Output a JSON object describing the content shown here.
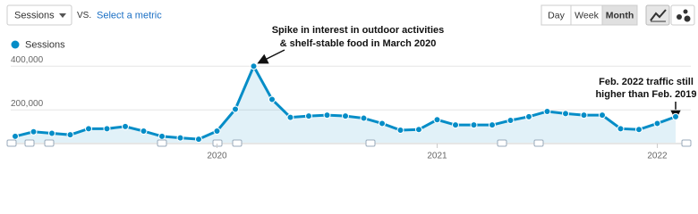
{
  "toolbar": {
    "metric": "Sessions",
    "vs": "VS.",
    "select": "Select a metric",
    "periods": [
      "Day",
      "Week",
      "Month"
    ]
  },
  "chart_data": {
    "type": "line",
    "categories": [
      null,
      null,
      null,
      null,
      null,
      null,
      null,
      null,
      null,
      null,
      null,
      "2020",
      null,
      null,
      null,
      null,
      null,
      null,
      null,
      null,
      null,
      null,
      null,
      "2021",
      null,
      null,
      null,
      null,
      null,
      null,
      null,
      null,
      null,
      null,
      null,
      "2022",
      null
    ],
    "series": [
      {
        "name": "Sessions",
        "color": "#058dc7",
        "values": [
          79000,
          100000,
          93000,
          86000,
          114000,
          114000,
          124000,
          103000,
          79000,
          72000,
          66000,
          103000,
          203000,
          400000,
          248000,
          166000,
          172000,
          176000,
          172000,
          162000,
          138000,
          107000,
          110000,
          155000,
          131000,
          131000,
          131000,
          152000,
          169000,
          193000,
          183000,
          176000,
          176000,
          114000,
          110000,
          138000,
          169000
        ]
      }
    ],
    "ylim": [
      50000,
      450000
    ],
    "yticks": [
      {
        "value": 200000,
        "label": "200,000"
      },
      {
        "value": 400000,
        "label": "400,000"
      }
    ],
    "grid": true,
    "area": true,
    "annotations": [
      [
        "Spike in interest in outdoor activities",
        "& shelf-stable food in March 2020"
      ],
      [
        "Feb. 2022 traffic still",
        "higher than Feb. 2019"
      ]
    ]
  }
}
